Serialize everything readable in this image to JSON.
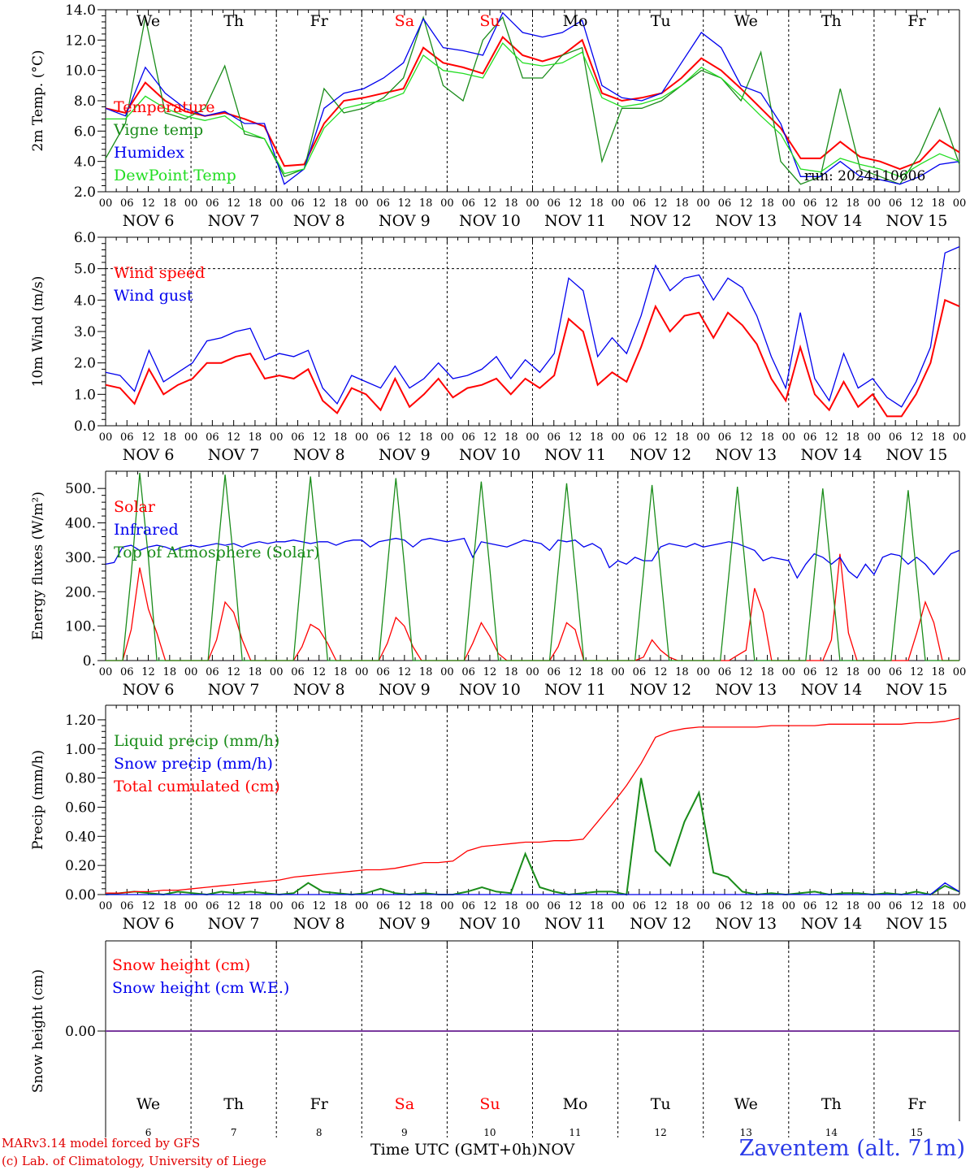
{
  "footer": {
    "model_line": "MARv3.14 model forced by GFS",
    "credit_line": "(c) Lab. of Climatology, University of Liege",
    "time_label": "Time UTC (GMT+0h)",
    "month_label": "NOV",
    "station": "Zaventem (alt. 71m)"
  },
  "colors": {
    "red": "#ff0000",
    "green": "#1a8c1a",
    "light_green": "#22dd22",
    "blue": "#0000ee",
    "purple": "#7a3b9e",
    "grid": "#000000"
  },
  "days": {
    "weekdays": [
      "We",
      "Th",
      "Fr",
      "Sa",
      "Su",
      "Mo",
      "Tu",
      "We",
      "Th",
      "Fr"
    ],
    "weekday_colors": [
      "#000000",
      "#000000",
      "#000000",
      "#ff0000",
      "#ff0000",
      "#000000",
      "#000000",
      "#000000",
      "#000000",
      "#000000"
    ],
    "date_labels": [
      "NOV 6",
      "NOV 7",
      "NOV 8",
      "NOV 9",
      "NOV 10",
      "NOV 11",
      "NOV 12",
      "NOV 13",
      "NOV 14",
      "NOV 15"
    ],
    "day_numbers": [
      "6",
      "7",
      "8",
      "9",
      "10",
      "11",
      "12",
      "13",
      "14",
      "15"
    ],
    "hour_labels": [
      "00",
      "06",
      "12",
      "18"
    ],
    "end_hour_label": "00"
  },
  "chart_data": [
    {
      "type": "line",
      "panel": "temperature",
      "ylabel": "2m Temp. (°C)",
      "ylim": [
        2.0,
        14.0
      ],
      "yticks": [
        "14.0",
        "12.0",
        "10.0",
        "8.0",
        "6.0",
        "4.0",
        "2.0"
      ],
      "x_hours_step": 6,
      "annotation": "run: 2024110606",
      "series": [
        {
          "name": "Temperature",
          "color": "#ff0000",
          "values": [
            7.5,
            7.2,
            9.2,
            8.0,
            7.3,
            7.0,
            7.2,
            6.8,
            6.3,
            3.7,
            3.8,
            6.5,
            8.0,
            8.2,
            8.5,
            8.8,
            11.5,
            10.5,
            10.2,
            9.8,
            12.2,
            11.0,
            10.6,
            11.0,
            12.0,
            8.5,
            8.0,
            8.2,
            8.5,
            9.5,
            10.8,
            10.0,
            8.8,
            7.5,
            6.2,
            4.2,
            4.2,
            5.3,
            4.3,
            4.0,
            3.5,
            4.0,
            5.4,
            4.6
          ]
        },
        {
          "name": "Vigne temp",
          "color": "#1a8c1a",
          "values": [
            4.2,
            6.5,
            13.5,
            7.2,
            6.8,
            7.5,
            10.3,
            5.8,
            5.5,
            3.0,
            3.5,
            8.8,
            7.2,
            7.5,
            8.2,
            9.5,
            13.5,
            9.0,
            8.0,
            12.0,
            13.5,
            9.5,
            9.5,
            11.0,
            11.5,
            4.0,
            7.5,
            7.5,
            8.0,
            9.0,
            10.0,
            9.5,
            8.0,
            11.2,
            4.0,
            2.5,
            3.0,
            8.8,
            3.5,
            3.0,
            2.5,
            4.5,
            7.5,
            3.8
          ]
        },
        {
          "name": "Humidex",
          "color": "#0000ee",
          "values": [
            7.5,
            7.0,
            10.2,
            8.5,
            7.5,
            7.0,
            7.3,
            6.5,
            6.5,
            2.5,
            3.5,
            7.5,
            8.5,
            8.8,
            9.5,
            10.5,
            13.4,
            11.5,
            11.3,
            11.0,
            13.8,
            12.5,
            12.2,
            12.5,
            13.3,
            9.0,
            8.2,
            8.0,
            8.5,
            10.5,
            12.5,
            11.5,
            9.0,
            8.5,
            6.5,
            3.0,
            3.0,
            4.0,
            3.0,
            2.8,
            2.5,
            3.0,
            3.8,
            4.0
          ]
        },
        {
          "name": "DewPoint Temp",
          "color": "#22dd22",
          "values": [
            6.8,
            6.8,
            8.3,
            7.5,
            7.0,
            6.7,
            7.0,
            6.0,
            5.5,
            3.2,
            3.5,
            6.2,
            7.5,
            7.8,
            8.0,
            8.5,
            11.0,
            10.0,
            9.8,
            9.5,
            11.8,
            10.5,
            10.3,
            10.5,
            11.2,
            8.2,
            7.6,
            7.8,
            8.2,
            9.0,
            10.2,
            9.5,
            8.3,
            7.0,
            5.8,
            3.5,
            3.3,
            4.2,
            3.8,
            3.5,
            3.0,
            3.8,
            4.5,
            4.0
          ]
        }
      ]
    },
    {
      "type": "line",
      "panel": "wind",
      "ylabel": "10m Wind (m/s)",
      "ylim": [
        0.0,
        6.0
      ],
      "yticks": [
        "6.0",
        "5.0",
        "4.0",
        "3.0",
        "2.0",
        "1.0",
        "0.0"
      ],
      "x_hours_step": 6,
      "series": [
        {
          "name": "Wind speed",
          "color": "#ff0000",
          "values": [
            1.3,
            1.2,
            0.7,
            1.8,
            1.0,
            1.3,
            1.5,
            2.0,
            2.0,
            2.2,
            2.3,
            1.5,
            1.6,
            1.5,
            1.8,
            0.8,
            0.4,
            1.2,
            1.0,
            0.5,
            1.5,
            0.6,
            1.0,
            1.5,
            0.9,
            1.2,
            1.3,
            1.5,
            1.0,
            1.5,
            1.2,
            1.6,
            3.4,
            3.0,
            1.3,
            1.7,
            1.4,
            2.5,
            3.8,
            3.0,
            3.5,
            3.6,
            2.8,
            3.6,
            3.2,
            2.6,
            1.5,
            0.8,
            2.5,
            1.0,
            0.5,
            1.4,
            0.6,
            1.0,
            0.3,
            0.3,
            1.0,
            2.0,
            4.0,
            3.8
          ]
        },
        {
          "name": "Wind gust",
          "color": "#0000ee",
          "values": [
            1.7,
            1.6,
            1.1,
            2.4,
            1.4,
            1.7,
            2.0,
            2.7,
            2.8,
            3.0,
            3.1,
            2.1,
            2.3,
            2.2,
            2.4,
            1.2,
            0.7,
            1.6,
            1.4,
            1.2,
            1.9,
            1.2,
            1.5,
            2.0,
            1.5,
            1.6,
            1.8,
            2.2,
            1.5,
            2.1,
            1.7,
            2.3,
            4.7,
            4.3,
            2.2,
            2.8,
            2.3,
            3.5,
            5.1,
            4.3,
            4.7,
            4.8,
            4.0,
            4.7,
            4.4,
            3.5,
            2.2,
            1.2,
            3.6,
            1.5,
            0.8,
            2.3,
            1.2,
            1.5,
            0.9,
            0.6,
            1.4,
            2.5,
            5.5,
            5.7
          ]
        }
      ]
    },
    {
      "type": "line",
      "panel": "energy",
      "ylabel": "Energy fluxes (W/m²)",
      "ylim": [
        0,
        550
      ],
      "yticks": [
        "500.",
        "400.",
        "300.",
        "200.",
        "100.",
        "0."
      ],
      "ytick_values": [
        500,
        400,
        300,
        200,
        100,
        0
      ],
      "x_hours_step": 3,
      "series": [
        {
          "name": "Solar",
          "color": "#ff0000",
          "values": [
            0,
            0,
            0,
            90,
            270,
            150,
            80,
            0,
            0,
            0,
            0,
            0,
            0,
            60,
            170,
            140,
            60,
            0,
            0,
            0,
            0,
            0,
            0,
            40,
            105,
            90,
            50,
            0,
            0,
            0,
            0,
            0,
            0,
            50,
            125,
            100,
            40,
            0,
            0,
            0,
            0,
            0,
            0,
            50,
            110,
            70,
            20,
            0,
            0,
            0,
            0,
            0,
            0,
            40,
            110,
            90,
            0,
            0,
            0,
            0,
            0,
            0,
            0,
            10,
            60,
            30,
            10,
            0,
            0,
            0,
            0,
            0,
            0,
            0,
            15,
            30,
            210,
            140,
            0,
            0,
            0,
            0,
            0,
            0,
            0,
            60,
            310,
            80,
            0,
            0,
            0,
            0,
            0,
            0,
            0,
            80,
            170,
            110,
            0,
            0,
            0
          ]
        },
        {
          "name": "Infrared",
          "color": "#0000ee",
          "values": [
            280,
            285,
            330,
            335,
            320,
            330,
            335,
            330,
            320,
            330,
            335,
            330,
            335,
            340,
            335,
            340,
            330,
            340,
            345,
            340,
            345,
            345,
            350,
            345,
            340,
            345,
            345,
            335,
            345,
            350,
            350,
            330,
            345,
            350,
            355,
            350,
            330,
            350,
            355,
            350,
            345,
            350,
            355,
            300,
            345,
            340,
            335,
            330,
            340,
            350,
            345,
            340,
            320,
            350,
            345,
            350,
            330,
            340,
            325,
            270,
            290,
            280,
            300,
            290,
            290,
            330,
            340,
            335,
            330,
            340,
            330,
            335,
            340,
            345,
            340,
            330,
            320,
            290,
            300,
            295,
            290,
            240,
            280,
            310,
            300,
            280,
            300,
            260,
            240,
            280,
            250,
            300,
            310,
            305,
            280,
            300,
            280,
            250,
            280,
            310,
            320
          ]
        },
        {
          "name": "Top of Atmosphere (Solar)",
          "color": "#1a8c1a",
          "values": [
            0,
            0,
            0,
            250,
            545,
            300,
            0,
            0,
            0,
            0,
            0,
            0,
            0,
            280,
            540,
            290,
            0,
            0,
            0,
            0,
            0,
            0,
            0,
            280,
            535,
            285,
            0,
            0,
            0,
            0,
            0,
            0,
            0,
            270,
            530,
            275,
            0,
            0,
            0,
            0,
            0,
            0,
            0,
            265,
            520,
            265,
            0,
            0,
            0,
            0,
            0,
            0,
            0,
            260,
            515,
            260,
            0,
            0,
            0,
            0,
            0,
            0,
            0,
            255,
            510,
            255,
            0,
            0,
            0,
            0,
            0,
            0,
            0,
            250,
            505,
            250,
            0,
            0,
            0,
            0,
            0,
            0,
            0,
            250,
            500,
            250,
            0,
            0,
            0,
            0,
            0,
            0,
            0,
            245,
            495,
            245,
            0,
            0,
            0,
            0,
            0
          ]
        }
      ]
    },
    {
      "type": "line",
      "panel": "precip",
      "ylabel": "Precip (mm/h)",
      "ylim": [
        0.0,
        1.3
      ],
      "yticks": [
        "1.20",
        "1.00",
        "0.80",
        "0.60",
        "0.40",
        "0.20",
        "0.00"
      ],
      "ytick_values": [
        1.2,
        1.0,
        0.8,
        0.6,
        0.4,
        0.2,
        0.0
      ],
      "x_hours_step": 6,
      "series": [
        {
          "name": "Liquid precip (mm/h)",
          "color": "#1a8c1a",
          "values": [
            0.0,
            0.01,
            0.02,
            0.01,
            0.0,
            0.02,
            0.01,
            0.0,
            0.02,
            0.01,
            0.02,
            0.01,
            0.0,
            0.01,
            0.08,
            0.02,
            0.01,
            0.0,
            0.01,
            0.04,
            0.01,
            0.0,
            0.01,
            0.0,
            0.0,
            0.02,
            0.05,
            0.02,
            0.01,
            0.28,
            0.05,
            0.02,
            0.0,
            0.01,
            0.02,
            0.02,
            0.0,
            0.8,
            0.3,
            0.2,
            0.5,
            0.7,
            0.15,
            0.12,
            0.02,
            0.0,
            0.01,
            0.0,
            0.01,
            0.02,
            0.0,
            0.01,
            0.01,
            0.0,
            0.01,
            0.0,
            0.02,
            0.0,
            0.06,
            0.02
          ]
        },
        {
          "name": "Snow precip (mm/h)",
          "color": "#0000ee",
          "values": [
            0.0,
            0.0,
            0.0,
            0.0,
            0.0,
            0.0,
            0.0,
            0.0,
            0.0,
            0.0,
            0.0,
            0.0,
            0.0,
            0.0,
            0.0,
            0.0,
            0.0,
            0.0,
            0.0,
            0.0,
            0.0,
            0.0,
            0.0,
            0.0,
            0.0,
            0.0,
            0.0,
            0.0,
            0.0,
            0.0,
            0.0,
            0.0,
            0.0,
            0.0,
            0.0,
            0.0,
            0.0,
            0.0,
            0.0,
            0.0,
            0.0,
            0.0,
            0.0,
            0.0,
            0.0,
            0.0,
            0.0,
            0.0,
            0.0,
            0.0,
            0.0,
            0.0,
            0.0,
            0.0,
            0.0,
            0.0,
            0.0,
            0.0,
            0.08,
            0.02
          ]
        },
        {
          "name": "Total cumulated (cm)",
          "color": "#ff0000",
          "values": [
            0.01,
            0.01,
            0.02,
            0.02,
            0.03,
            0.03,
            0.04,
            0.05,
            0.06,
            0.07,
            0.08,
            0.09,
            0.1,
            0.12,
            0.13,
            0.14,
            0.15,
            0.16,
            0.17,
            0.17,
            0.18,
            0.2,
            0.22,
            0.22,
            0.23,
            0.3,
            0.33,
            0.34,
            0.35,
            0.36,
            0.36,
            0.37,
            0.37,
            0.38,
            0.5,
            0.62,
            0.75,
            0.9,
            1.08,
            1.12,
            1.14,
            1.15,
            1.15,
            1.15,
            1.15,
            1.15,
            1.16,
            1.16,
            1.16,
            1.16,
            1.17,
            1.17,
            1.17,
            1.17,
            1.17,
            1.17,
            1.18,
            1.18,
            1.19,
            1.21
          ]
        }
      ]
    },
    {
      "type": "line",
      "panel": "snow",
      "ylabel": "Snow height (cm)",
      "ylim": [
        -1.0,
        1.0
      ],
      "yticks": [
        "0.00"
      ],
      "ytick_values": [
        0.0
      ],
      "x_hours_step": 240,
      "series": [
        {
          "name": "Snow height (cm)",
          "color": "#ff0000",
          "values": [
            0.0,
            0.0
          ]
        },
        {
          "name": "Snow height (cm W.E.)",
          "color": "#0000ee",
          "values": [
            0.0,
            0.0
          ]
        }
      ]
    }
  ]
}
